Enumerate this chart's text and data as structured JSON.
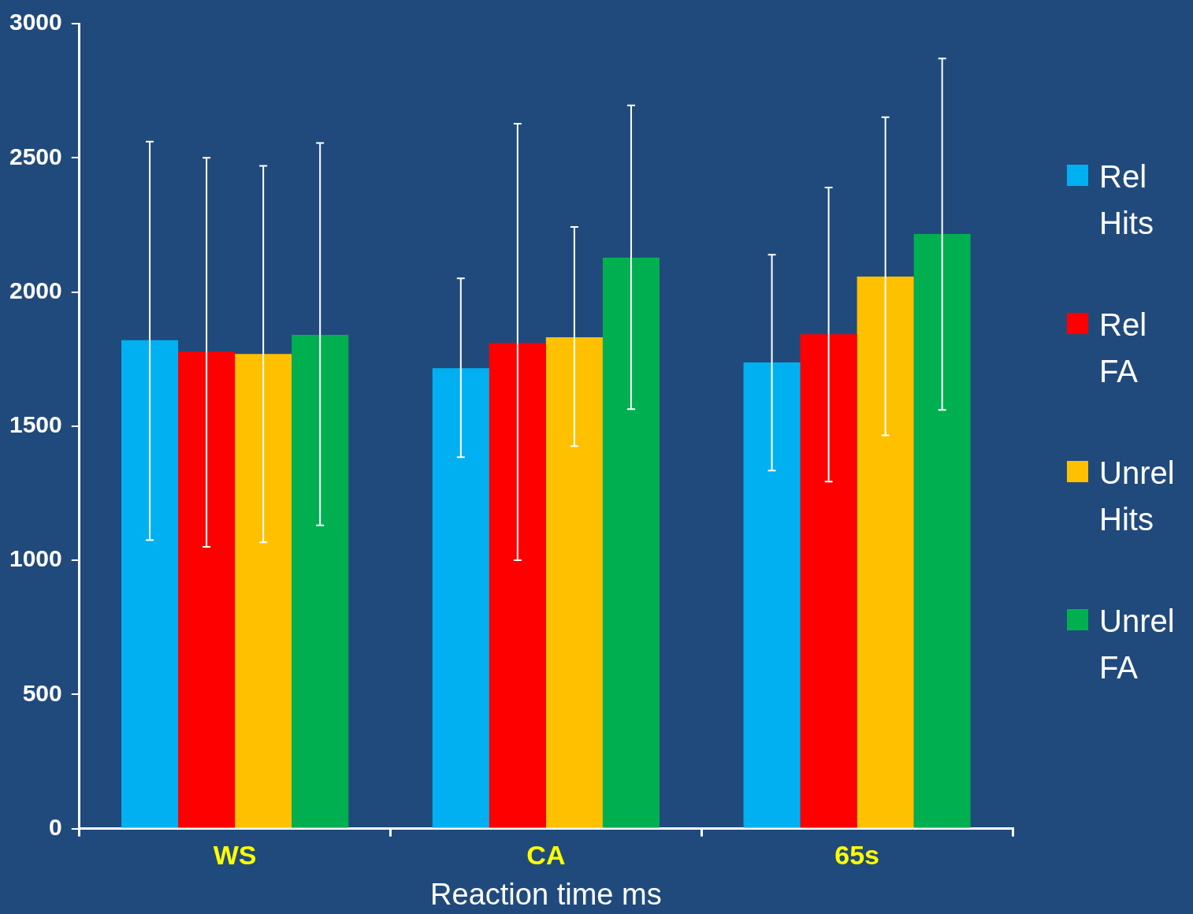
{
  "chart_data": {
    "type": "bar",
    "xlabel": "Reaction time ms",
    "categories": [
      "WS",
      "CA",
      "65s"
    ],
    "series": [
      {
        "name": "Rel Hits",
        "color": "#00b0f0",
        "values": [
          1820,
          1716,
          1737
        ],
        "errors": [
          [
            1075,
            2560
          ],
          [
            1384,
            2051
          ],
          [
            1334,
            2139
          ]
        ]
      },
      {
        "name": "Rel FA",
        "color": "#ff0000",
        "values": [
          1778,
          1810,
          1842
        ],
        "errors": [
          [
            1050,
            2500
          ],
          [
            1000,
            2627
          ],
          [
            1293,
            2389
          ]
        ]
      },
      {
        "name": "Unrel Hits",
        "color": "#ffc000",
        "values": [
          1769,
          1831,
          2057
        ],
        "errors": [
          [
            1067,
            2470
          ],
          [
            1425,
            2242
          ],
          [
            1466,
            2651
          ]
        ]
      },
      {
        "name": "Unrel FA",
        "color": "#00b050",
        "values": [
          1840,
          2128,
          2216
        ],
        "errors": [
          [
            1130,
            2555
          ],
          [
            1563,
            2695
          ],
          [
            1560,
            2870
          ]
        ]
      }
    ],
    "ylim": [
      0,
      3000
    ],
    "yticks": [
      0,
      500,
      1000,
      1500,
      2000,
      2500,
      3000
    ],
    "grid": false,
    "legend": "right"
  }
}
